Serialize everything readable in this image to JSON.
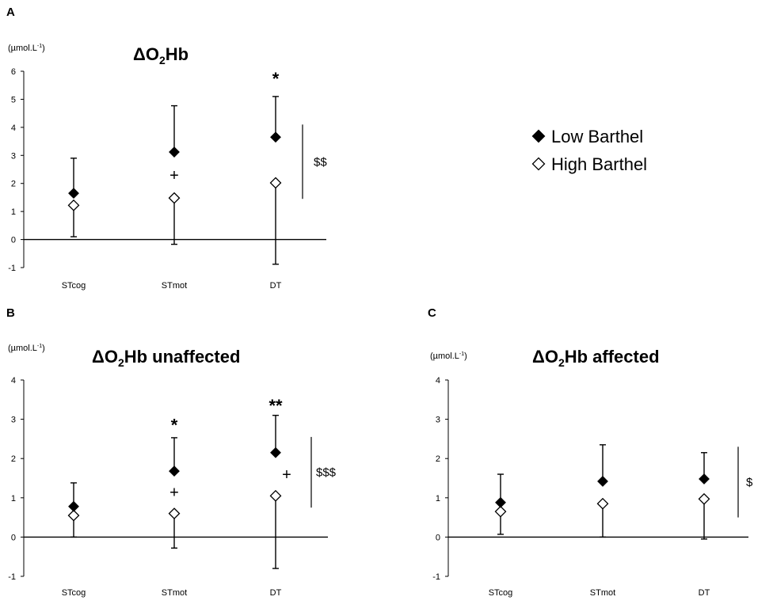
{
  "legend": {
    "entries": [
      {
        "label": "Low Barthel",
        "marker": "filled-diamond",
        "color": "#000000"
      },
      {
        "label": "High Barthel",
        "marker": "open-diamond",
        "color": "#000000"
      }
    ]
  },
  "chart_data": [
    {
      "panel": "A",
      "type": "scatter",
      "title_main": "ΔO",
      "title_sub": "2",
      "title_rest": "Hb",
      "unit": "(µmol.L",
      "unit_sup": "-1",
      "unit_close": ")",
      "ylim": [
        -1,
        6
      ],
      "yticks": [
        -1,
        0,
        1,
        2,
        3,
        4,
        5,
        6
      ],
      "categories": [
        "STcog",
        "STmot",
        "DT"
      ],
      "series": [
        {
          "name": "Low Barthel",
          "values": [
            1.65,
            3.12,
            3.65
          ],
          "errors": [
            1.25,
            1.65,
            1.45
          ],
          "error_direction": "up"
        },
        {
          "name": "High Barthel",
          "values": [
            1.22,
            1.48,
            2.02
          ],
          "errors": [
            1.12,
            1.65,
            2.9
          ],
          "error_direction": "down"
        }
      ],
      "annotations": [
        {
          "text": "*",
          "category": 2,
          "y": 5.8
        },
        {
          "text": "+",
          "category": 1,
          "y": 2.3
        },
        {
          "text": "$$",
          "bracket": [
            1.45,
            4.1
          ]
        }
      ]
    },
    {
      "panel": "B",
      "type": "scatter",
      "title_main": "ΔO",
      "title_sub": "2",
      "title_rest": "Hb unaffected",
      "unit": "(µmol.L",
      "unit_sup": "-1",
      "unit_close": ")",
      "ylim": [
        -1,
        4
      ],
      "yticks": [
        -1,
        0,
        1,
        2,
        3,
        4
      ],
      "categories": [
        "STcog",
        "STmot",
        "DT"
      ],
      "series": [
        {
          "name": "Low Barthel",
          "values": [
            0.78,
            1.68,
            2.15
          ],
          "errors": [
            0.6,
            0.85,
            0.95
          ],
          "error_direction": "up"
        },
        {
          "name": "High Barthel",
          "values": [
            0.55,
            0.6,
            1.05
          ],
          "errors": [
            0.55,
            0.88,
            1.85
          ],
          "error_direction": "down"
        }
      ],
      "annotations": [
        {
          "text": "*",
          "category": 1,
          "y": 2.9
        },
        {
          "text": "**",
          "category": 2,
          "y": 3.4
        },
        {
          "text": "+",
          "category": 1,
          "y": 1.15
        },
        {
          "text": "+",
          "category": 2,
          "y": 1.6,
          "offset": "right"
        },
        {
          "text": "$$$",
          "bracket": [
            0.75,
            2.55
          ]
        }
      ]
    },
    {
      "panel": "C",
      "type": "scatter",
      "title_main": "ΔO",
      "title_sub": "2",
      "title_rest": "Hb affected",
      "unit": "(µmol.L",
      "unit_sup": "-1",
      "unit_close": ")",
      "ylim": [
        -1,
        4
      ],
      "yticks": [
        -1,
        0,
        1,
        2,
        3,
        4
      ],
      "categories": [
        "STcog",
        "STmot",
        "DT"
      ],
      "series": [
        {
          "name": "Low Barthel",
          "values": [
            0.88,
            1.42,
            1.48
          ],
          "errors": [
            0.72,
            0.93,
            0.67
          ],
          "error_direction": "up"
        },
        {
          "name": "High Barthel",
          "values": [
            0.65,
            0.85,
            0.97
          ],
          "errors": [
            0.58,
            0.85,
            1.02
          ],
          "error_direction": "down"
        }
      ],
      "annotations": [
        {
          "text": "$",
          "bracket": [
            0.5,
            2.3
          ]
        }
      ]
    }
  ]
}
